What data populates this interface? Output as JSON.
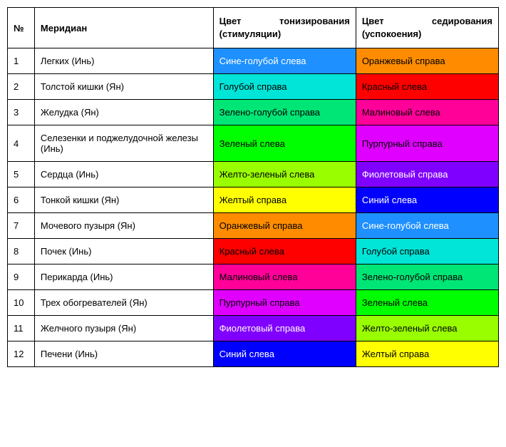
{
  "headers": {
    "num": "№",
    "meridian": "Меридиан",
    "stim_w1": "Цвет",
    "stim_w2": "тонизирования",
    "stim_line2": "(стимуляции)",
    "sed_w1": "Цвет",
    "sed_w2": "седирования",
    "sed_line2": "(успокоения)"
  },
  "rows": [
    {
      "num": "1",
      "meridian": "Легких (Инь)",
      "stim_label": "Сине-голубой слева",
      "stim_bg": "#1e90ff",
      "stim_fg": "#ffffff",
      "sed_label": "Оранжевый справа",
      "sed_bg": "#ff8c00",
      "sed_fg": "#000000"
    },
    {
      "num": "2",
      "meridian": "Толстой кишки (Ян)",
      "stim_label": "Голубой справа",
      "stim_bg": "#00e5d8",
      "stim_fg": "#000000",
      "sed_label": "Красный слева",
      "sed_bg": "#ff0000",
      "sed_fg": "#000000"
    },
    {
      "num": "3",
      "meridian": "Желудка (Ян)",
      "stim_label": "Зелено-голубой справа",
      "stim_bg": "#00e676",
      "stim_fg": "#000000",
      "sed_label": "Малиновый слева",
      "sed_bg": "#ff0099",
      "sed_fg": "#000000"
    },
    {
      "num": "4",
      "meridian": "Селезенки и поджелудочной железы (Инь)",
      "stim_label": "Зеленый слева",
      "stim_bg": "#00ff00",
      "stim_fg": "#000000",
      "sed_label": "Пурпурный справа",
      "sed_bg": "#e000ff",
      "sed_fg": "#000000"
    },
    {
      "num": "5",
      "meridian": "Сердца (Инь)",
      "stim_label": "Желто-зеленый слева",
      "stim_bg": "#99ff00",
      "stim_fg": "#000000",
      "sed_label": "Фиолетовый справа",
      "sed_bg": "#8000ff",
      "sed_fg": "#ffffff"
    },
    {
      "num": "6",
      "meridian": "Тонкой кишки (Ян)",
      "stim_label": "Желтый справа",
      "stim_bg": "#ffff00",
      "stim_fg": "#000000",
      "sed_label": "Синий слева",
      "sed_bg": "#0000ff",
      "sed_fg": "#ffffff"
    },
    {
      "num": "7",
      "meridian": "Мочевого пузыря (Ян)",
      "stim_label": "Оранжевый справа",
      "stim_bg": "#ff8c00",
      "stim_fg": "#000000",
      "sed_label": "Сине-голубой слева",
      "sed_bg": "#1e90ff",
      "sed_fg": "#ffffff"
    },
    {
      "num": "8",
      "meridian": "Почек (Инь)",
      "stim_label": "Красный слева",
      "stim_bg": "#ff0000",
      "stim_fg": "#000000",
      "sed_label": "Голубой справа",
      "sed_bg": "#00e5d8",
      "sed_fg": "#000000"
    },
    {
      "num": "9",
      "meridian": "Перикарда (Инь)",
      "stim_label": "Малиновый слева",
      "stim_bg": "#ff0099",
      "stim_fg": "#000000",
      "sed_label": "Зелено-голубой справа",
      "sed_bg": "#00e676",
      "sed_fg": "#000000"
    },
    {
      "num": "10",
      "meridian": "Трех обогревателей (Ян)",
      "stim_label": "Пурпурный справа",
      "stim_bg": "#e000ff",
      "stim_fg": "#000000",
      "sed_label": "Зеленый слева",
      "sed_bg": "#00ff00",
      "sed_fg": "#000000"
    },
    {
      "num": "11",
      "meridian": "Желчного пузыря (Ян)",
      "stim_label": "Фиолетовый справа",
      "stim_bg": "#8000ff",
      "stim_fg": "#ffffff",
      "sed_label": "Желто-зеленый слева",
      "sed_bg": "#99ff00",
      "sed_fg": "#000000"
    },
    {
      "num": "12",
      "meridian": "Печени (Инь)",
      "stim_label": "Синий слева",
      "stim_bg": "#0000ff",
      "stim_fg": "#ffffff",
      "sed_label": "Желтый справа",
      "sed_bg": "#ffff00",
      "sed_fg": "#000000"
    }
  ]
}
